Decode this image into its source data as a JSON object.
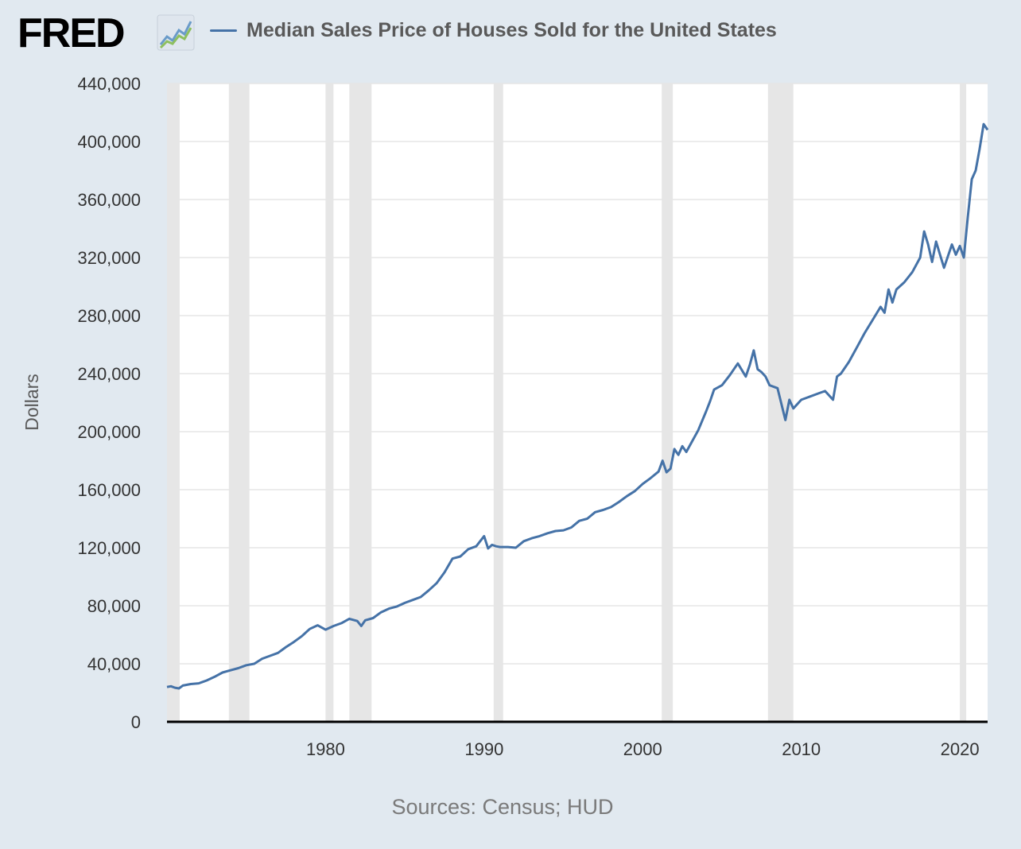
{
  "brand": {
    "logo_text": "FRED",
    "logo_icon": "line-graph-icon"
  },
  "legend": {
    "series_label": "Median Sales Price of Houses Sold for the United States"
  },
  "source": {
    "text": "Sources: Census; HUD"
  },
  "colors": {
    "series": "#4572a7",
    "recession": "#e6e6e6",
    "grid": "#e6e6e6",
    "plot_bg": "#ffffff",
    "page_bg": "#e1e9f0"
  },
  "chart_data": {
    "type": "line",
    "title": "",
    "ylabel": "Dollars",
    "xlabel": "",
    "source": "Sources: Census; HUD",
    "xlim": [
      1970.0,
      2021.75
    ],
    "ylim": [
      0,
      440000
    ],
    "yticks": [
      0,
      40000,
      80000,
      120000,
      160000,
      200000,
      240000,
      280000,
      320000,
      360000,
      400000,
      440000
    ],
    "ytick_labels": [
      "0",
      "40,000",
      "80,000",
      "120,000",
      "160,000",
      "200,000",
      "240,000",
      "280,000",
      "320,000",
      "360,000",
      "400,000",
      "440,000"
    ],
    "xticks": [
      1980,
      1990,
      2000,
      2010,
      2020
    ],
    "xtick_labels": [
      "1980",
      "1990",
      "2000",
      "2010",
      "2020"
    ],
    "grid": true,
    "legend_position": "top",
    "recessions": [
      [
        1970.0,
        1970.8
      ],
      [
        1973.9,
        1975.2
      ],
      [
        1980.0,
        1980.5
      ],
      [
        1981.5,
        1982.9
      ],
      [
        1990.6,
        1991.2
      ],
      [
        2001.2,
        2001.9
      ],
      [
        2007.9,
        2009.5
      ],
      [
        2020.0,
        2020.4
      ]
    ],
    "series": [
      {
        "name": "Median Sales Price of Houses Sold for the United States",
        "x": [
          1970.0,
          1970.25,
          1970.5,
          1970.75,
          1971.0,
          1971.5,
          1972.0,
          1972.5,
          1973.0,
          1973.5,
          1974.0,
          1974.5,
          1975.0,
          1975.5,
          1976.0,
          1976.5,
          1977.0,
          1977.5,
          1978.0,
          1978.5,
          1979.0,
          1979.5,
          1980.0,
          1980.5,
          1981.0,
          1981.5,
          1982.0,
          1982.25,
          1982.5,
          1983.0,
          1983.5,
          1984.0,
          1984.5,
          1985.0,
          1985.5,
          1986.0,
          1986.5,
          1987.0,
          1987.5,
          1988.0,
          1988.5,
          1989.0,
          1989.5,
          1990.0,
          1990.25,
          1990.5,
          1990.75,
          1991.0,
          1991.5,
          1992.0,
          1992.5,
          1993.0,
          1993.5,
          1994.0,
          1994.5,
          1995.0,
          1995.5,
          1996.0,
          1996.5,
          1997.0,
          1997.5,
          1998.0,
          1998.5,
          1999.0,
          1999.5,
          2000.0,
          2000.5,
          2001.0,
          2001.25,
          2001.5,
          2001.75,
          2002.0,
          2002.25,
          2002.5,
          2002.75,
          2003.0,
          2003.5,
          2004.0,
          2004.25,
          2004.5,
          2005.0,
          2005.5,
          2006.0,
          2006.5,
          2006.75,
          2007.0,
          2007.25,
          2007.5,
          2007.75,
          2008.0,
          2008.5,
          2009.0,
          2009.25,
          2009.5,
          2010.0,
          2010.5,
          2011.0,
          2011.5,
          2012.0,
          2012.25,
          2012.5,
          2013.0,
          2013.5,
          2014.0,
          2014.5,
          2015.0,
          2015.25,
          2015.5,
          2015.75,
          2016.0,
          2016.5,
          2017.0,
          2017.5,
          2017.75,
          2018.0,
          2018.25,
          2018.5,
          2018.75,
          2019.0,
          2019.5,
          2019.75,
          2020.0,
          2020.25,
          2020.5,
          2020.75,
          2021.0,
          2021.25,
          2021.5,
          2021.75
        ],
        "values": [
          24000,
          24500,
          23500,
          23000,
          25000,
          26000,
          26500,
          28500,
          31000,
          34000,
          35500,
          37000,
          39000,
          40000,
          43500,
          45500,
          47500,
          51500,
          55000,
          59000,
          64000,
          66500,
          63500,
          66000,
          68000,
          71000,
          69500,
          66000,
          70000,
          71500,
          75500,
          78000,
          79500,
          82000,
          84000,
          86000,
          90500,
          95500,
          103000,
          112500,
          114000,
          119000,
          121000,
          128000,
          119500,
          122000,
          121000,
          120500,
          120500,
          120000,
          124500,
          126500,
          128000,
          130000,
          131500,
          132000,
          134000,
          138500,
          140000,
          144500,
          146000,
          148000,
          151500,
          155500,
          159000,
          164000,
          168000,
          172500,
          180000,
          172000,
          174500,
          188000,
          184000,
          190000,
          186000,
          191000,
          201000,
          214000,
          221000,
          229000,
          232000,
          239000,
          247000,
          238000,
          246000,
          256000,
          243000,
          241000,
          238000,
          232000,
          230000,
          208000,
          222000,
          216000,
          222000,
          224000,
          226000,
          228000,
          222000,
          238000,
          240000,
          248000,
          258000,
          268000,
          277000,
          286000,
          282000,
          298000,
          289000,
          298000,
          303000,
          310000,
          320000,
          338000,
          329000,
          317000,
          331000,
          322000,
          313000,
          329000,
          322000,
          328000,
          320000,
          348000,
          374000,
          380000,
          395000,
          412000,
          408000
        ]
      }
    ]
  }
}
